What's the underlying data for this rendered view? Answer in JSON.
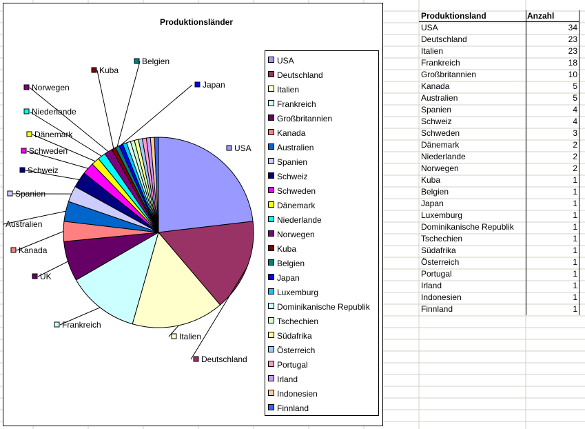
{
  "chart": {
    "title": "Produktionsländer",
    "legend_placement": "right",
    "slice_labels": [
      {
        "text": "USA"
      },
      {
        "text": "Deutschland"
      },
      {
        "text": "Italien"
      },
      {
        "text": "Frankreich"
      },
      {
        "text": "UK"
      },
      {
        "text": "Kanada"
      },
      {
        "text": "Australien"
      },
      {
        "text": "Spanien"
      },
      {
        "text": "Schweiz"
      },
      {
        "text": "Schweden"
      },
      {
        "text": "Dänemark"
      },
      {
        "text": "Niederlande"
      },
      {
        "text": "Norwegen"
      },
      {
        "text": "Kuba"
      },
      {
        "text": "Belgien"
      },
      {
        "text": "Japan"
      }
    ]
  },
  "chart_data": {
    "type": "pie",
    "title": "Produktionsländer",
    "categories": [
      "USA",
      "Deutschland",
      "Italien",
      "Frankreich",
      "Großbritannien",
      "Kanada",
      "Australien",
      "Spanien",
      "Schweiz",
      "Schweden",
      "Dänemark",
      "Niederlande",
      "Norwegen",
      "Kuba",
      "Belgien",
      "Japan",
      "Luxemburg",
      "Dominikanische Republik",
      "Tschechien",
      "Südafrika",
      "Österreich",
      "Portugal",
      "Irland",
      "Indonesien",
      "Finnland"
    ],
    "values": [
      34,
      23,
      23,
      18,
      10,
      5,
      5,
      4,
      4,
      3,
      2,
      2,
      2,
      1,
      1,
      1,
      1,
      1,
      1,
      1,
      1,
      1,
      1,
      1,
      1
    ],
    "colors": [
      "#9999FF",
      "#993366",
      "#FFFFCC",
      "#CCFFFF",
      "#660066",
      "#FF8080",
      "#0066CC",
      "#CCCCFF",
      "#000080",
      "#FF00FF",
      "#FFFF00",
      "#00FFFF",
      "#800080",
      "#800000",
      "#008080",
      "#0000FF",
      "#00CCFF",
      "#CCFFFF",
      "#CCFFCC",
      "#FFFF99",
      "#99CCFF",
      "#FF99CC",
      "#CC99FF",
      "#FFCC99",
      "#3366FF"
    ]
  },
  "table": {
    "header": {
      "name": "Produktionsland",
      "count": "Anzahl"
    },
    "rows": [
      {
        "name": "USA",
        "count": "34"
      },
      {
        "name": "Deutschland",
        "count": "23"
      },
      {
        "name": "Italien",
        "count": "23"
      },
      {
        "name": "Frankreich",
        "count": "18"
      },
      {
        "name": "Großbritannien",
        "count": "10"
      },
      {
        "name": "Kanada",
        "count": "5"
      },
      {
        "name": "Australien",
        "count": "5"
      },
      {
        "name": "Spanien",
        "count": "4"
      },
      {
        "name": "Schweiz",
        "count": "4"
      },
      {
        "name": "Schweden",
        "count": "3"
      },
      {
        "name": "Dänemark",
        "count": "2"
      },
      {
        "name": "Niederlande",
        "count": "2"
      },
      {
        "name": "Norwegen",
        "count": "2"
      },
      {
        "name": "Kuba",
        "count": "1"
      },
      {
        "name": "Belgien",
        "count": "1"
      },
      {
        "name": "Japan",
        "count": "1"
      },
      {
        "name": "Luxemburg",
        "count": "1"
      },
      {
        "name": "Dominikanische Republik",
        "count": "1"
      },
      {
        "name": "Tschechien",
        "count": "1"
      },
      {
        "name": "Südafrika",
        "count": "1"
      },
      {
        "name": "Österreich",
        "count": "1"
      },
      {
        "name": "Portugal",
        "count": "1"
      },
      {
        "name": "Irland",
        "count": "1"
      },
      {
        "name": "Indonesien",
        "count": "1"
      },
      {
        "name": "Finnland",
        "count": "1"
      }
    ]
  }
}
